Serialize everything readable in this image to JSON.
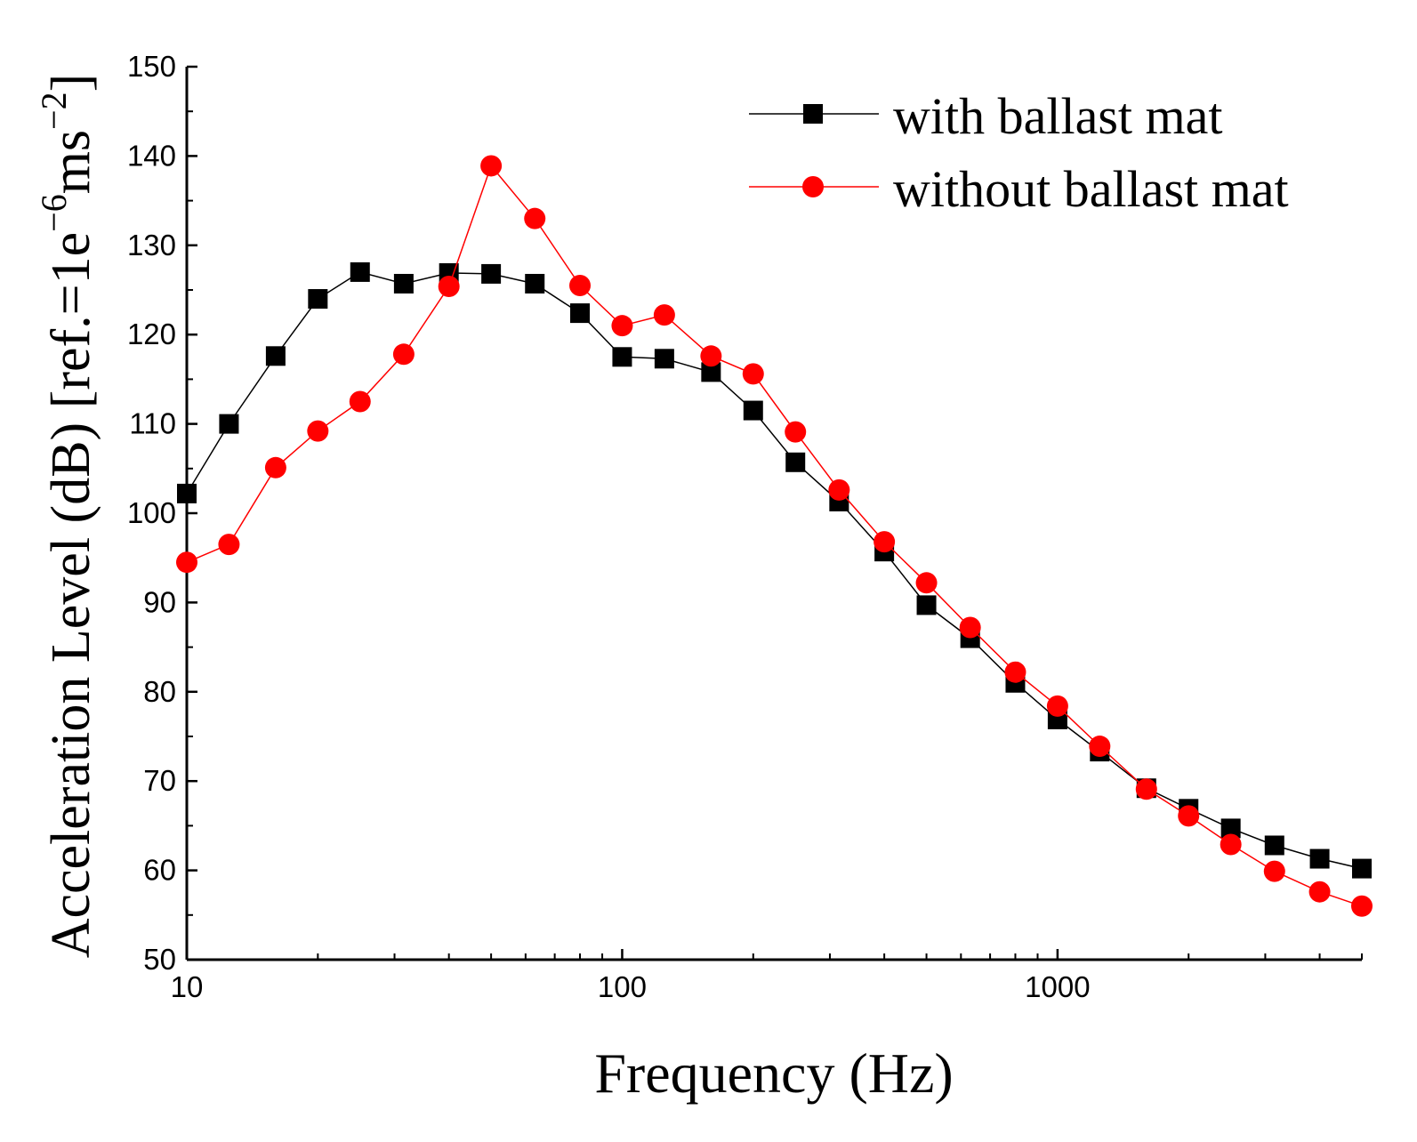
{
  "chart_data": {
    "type": "line",
    "xscale": "log",
    "xlim": [
      10,
      5000
    ],
    "ylim": [
      50,
      150
    ],
    "xlabel": "Frequency (Hz)",
    "ylabel": {
      "main": "Acceleration Level (dB) [ref.=1e",
      "sup1": "−6",
      "mid": "ms",
      "sup2": "−2",
      "end": "]"
    },
    "xticks": [
      10,
      100,
      1000
    ],
    "xtick_labels": [
      "10",
      "100",
      "1000"
    ],
    "yticks": [
      50,
      60,
      70,
      80,
      90,
      100,
      110,
      120,
      130,
      140,
      150
    ],
    "ytick_labels": [
      "50",
      "60",
      "70",
      "80",
      "90",
      "100",
      "110",
      "120",
      "130",
      "140",
      "150"
    ],
    "grid": false,
    "legend_position": "top-right",
    "x": [
      10,
      12.5,
      16,
      20,
      25,
      31.5,
      40,
      50,
      63,
      80,
      100,
      125,
      160,
      200,
      250,
      315,
      400,
      500,
      630,
      800,
      1000,
      1250,
      1600,
      2000,
      2500,
      3150,
      4000,
      5000
    ],
    "series": [
      {
        "name": "with ballast mat",
        "color": "#000000",
        "marker": "square",
        "values": [
          102.2,
          110.0,
          117.6,
          124.0,
          127.0,
          125.7,
          126.9,
          126.8,
          125.7,
          122.4,
          117.5,
          117.3,
          115.8,
          111.5,
          105.7,
          101.3,
          95.7,
          89.7,
          86.0,
          81.0,
          76.9,
          73.3,
          69.2,
          66.9,
          64.7,
          62.8,
          61.3,
          60.2
        ]
      },
      {
        "name": "without ballast mat",
        "color": "#ff0000",
        "marker": "circle",
        "values": [
          94.5,
          96.5,
          105.1,
          109.2,
          112.5,
          117.8,
          125.4,
          138.9,
          133.0,
          125.5,
          121.0,
          122.2,
          117.6,
          115.6,
          109.1,
          102.6,
          96.8,
          92.2,
          87.2,
          82.2,
          78.4,
          73.9,
          69.1,
          66.1,
          62.9,
          59.9,
          57.6,
          56.0
        ]
      }
    ]
  }
}
